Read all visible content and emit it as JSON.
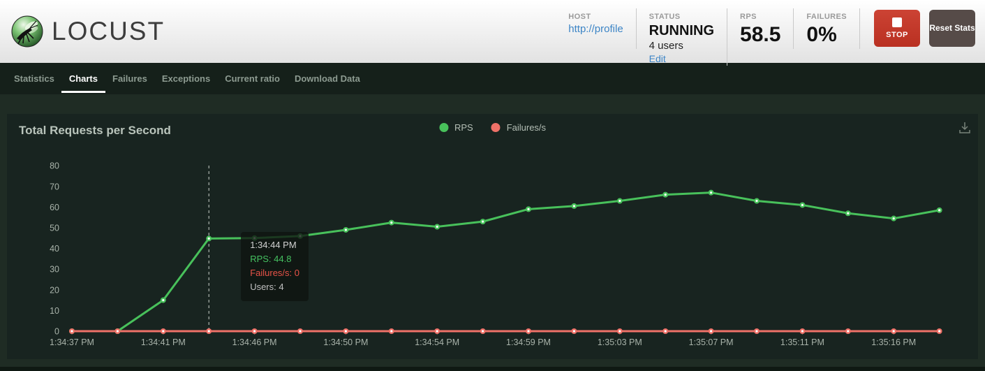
{
  "header": {
    "brand": "LOCUST",
    "host": {
      "label": "HOST",
      "value": "http://profile"
    },
    "status": {
      "label": "STATUS",
      "value": "RUNNING",
      "users": "4 users",
      "edit": "Edit"
    },
    "rps": {
      "label": "RPS",
      "value": "58.5"
    },
    "failures": {
      "label": "FAILURES",
      "value": "0%"
    },
    "stop_button": "STOP",
    "reset_button": "Reset Stats"
  },
  "nav": {
    "tabs": [
      {
        "label": "Statistics"
      },
      {
        "label": "Charts"
      },
      {
        "label": "Failures"
      },
      {
        "label": "Exceptions"
      },
      {
        "label": "Current ratio"
      },
      {
        "label": "Download Data"
      }
    ],
    "active_tab": "Charts"
  },
  "chart_data": {
    "type": "line",
    "title": "Total Requests per Second",
    "legend": [
      {
        "label": "RPS",
        "color": "#48c15b"
      },
      {
        "label": "Failures/s",
        "color": "#ee7168"
      }
    ],
    "yticks": [
      0,
      10,
      20,
      30,
      40,
      50,
      60,
      70,
      80
    ],
    "ylim": [
      0,
      85
    ],
    "x_labels": [
      "1:34:37 PM",
      "1:34:41 PM",
      "1:34:46 PM",
      "1:34:50 PM",
      "1:34:54 PM",
      "1:34:59 PM",
      "1:35:03 PM",
      "1:35:07 PM",
      "1:35:11 PM",
      "1:35:16 PM"
    ],
    "x_label_indices": [
      0,
      2,
      4,
      6,
      8,
      10,
      12,
      14,
      16,
      18
    ],
    "series": [
      {
        "name": "RPS",
        "color": "#48c15b",
        "values": [
          0,
          0,
          15,
          44.8,
          45,
          46,
          49,
          52.5,
          50.5,
          53,
          59,
          60.5,
          63,
          66,
          67,
          63,
          61,
          57,
          54.5,
          58.5
        ]
      },
      {
        "name": "Failures/s",
        "color": "#ee7168",
        "values": [
          0,
          0,
          0,
          0,
          0,
          0,
          0,
          0,
          0,
          0,
          0,
          0,
          0,
          0,
          0,
          0,
          0,
          0,
          0,
          0
        ]
      }
    ],
    "grid": false,
    "hover": {
      "index": 3,
      "time": "1:34:44 PM",
      "rps": "RPS: 44.8",
      "failures": "Failures/s: 0",
      "users": "Users: 4"
    }
  }
}
